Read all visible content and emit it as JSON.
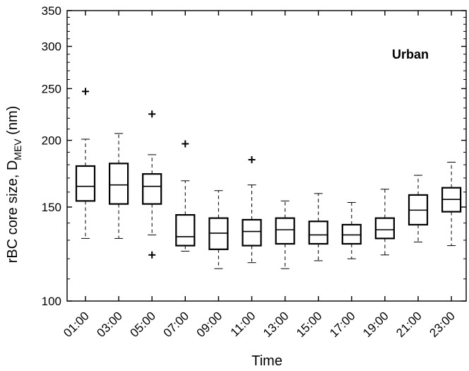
{
  "chart_data": {
    "type": "box",
    "title": "",
    "xlabel": "Time",
    "ylabel": {
      "main": "rBC core size, D",
      "subscript": "MEV",
      "unit": " (nm)"
    },
    "y_scale": "log",
    "ylim": [
      100,
      350
    ],
    "yticks": [
      100,
      150,
      200,
      250,
      300,
      350
    ],
    "yticks_labels": [
      "100",
      "150",
      "200",
      "250",
      "300",
      "350"
    ],
    "annotation": "Urban",
    "categories": [
      "01:00",
      "03:00",
      "05:00",
      "07:00",
      "09:00",
      "11:00",
      "13:00",
      "15:00",
      "17:00",
      "19:00",
      "21:00",
      "23:00"
    ],
    "boxes": [
      {
        "label": "01:00",
        "whisker_low": 131,
        "q1": 154,
        "median": 164,
        "q3": 179,
        "whisker_high": 201,
        "outliers": [
          247
        ]
      },
      {
        "label": "03:00",
        "whisker_low": 131,
        "q1": 152,
        "median": 165,
        "q3": 181,
        "whisker_high": 206,
        "outliers": []
      },
      {
        "label": "05:00",
        "whisker_low": 133,
        "q1": 152,
        "median": 164,
        "q3": 173,
        "whisker_high": 188,
        "outliers": [
          224,
          122
        ]
      },
      {
        "label": "07:00",
        "whisker_low": 124,
        "q1": 127,
        "median": 132,
        "q3": 145,
        "whisker_high": 168,
        "outliers": [
          197
        ]
      },
      {
        "label": "09:00",
        "whisker_low": 115,
        "q1": 125,
        "median": 134,
        "q3": 143,
        "whisker_high": 161,
        "outliers": []
      },
      {
        "label": "11:00",
        "whisker_low": 118,
        "q1": 127,
        "median": 135,
        "q3": 142,
        "whisker_high": 165,
        "outliers": [
          184
        ]
      },
      {
        "label": "13:00",
        "whisker_low": 115,
        "q1": 128,
        "median": 136,
        "q3": 143,
        "whisker_high": 154,
        "outliers": []
      },
      {
        "label": "15:00",
        "whisker_low": 119,
        "q1": 128,
        "median": 133,
        "q3": 141,
        "whisker_high": 159,
        "outliers": []
      },
      {
        "label": "17:00",
        "whisker_low": 120,
        "q1": 128,
        "median": 133,
        "q3": 139,
        "whisker_high": 153,
        "outliers": []
      },
      {
        "label": "19:00",
        "whisker_low": 122,
        "q1": 131,
        "median": 136,
        "q3": 143,
        "whisker_high": 162,
        "outliers": []
      },
      {
        "label": "21:00",
        "whisker_low": 129,
        "q1": 139,
        "median": 148,
        "q3": 158,
        "whisker_high": 172,
        "outliers": []
      },
      {
        "label": "23:00",
        "whisker_low": 127,
        "q1": 147,
        "median": 155,
        "q3": 163,
        "whisker_high": 182,
        "outliers": []
      }
    ],
    "grid": false,
    "legend": "none"
  }
}
